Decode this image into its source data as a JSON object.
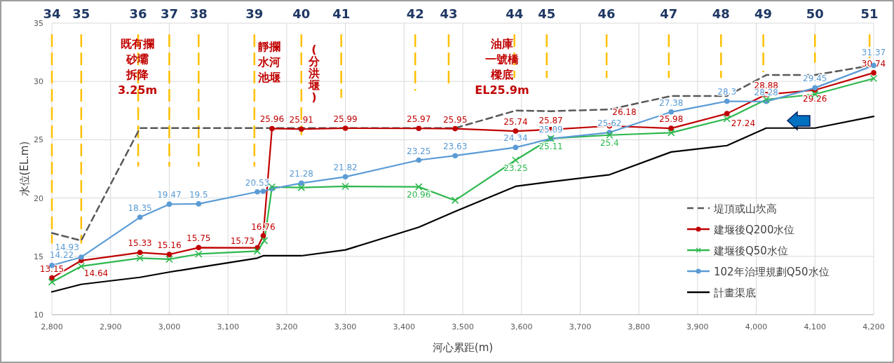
{
  "chart_data": {
    "type": "line",
    "xlabel": "河心累距(m)",
    "ylabel": "水位(EL.m)",
    "xlim": [
      2800,
      4200
    ],
    "ylim": [
      10,
      35
    ],
    "xticks": [
      {
        "value": 2800,
        "label": "2,800"
      },
      {
        "value": 2900,
        "label": "2,900"
      },
      {
        "value": 3000,
        "label": "3,000"
      },
      {
        "value": 3100,
        "label": "3,100"
      },
      {
        "value": 3200,
        "label": "3,200"
      },
      {
        "value": 3300,
        "label": "3,300"
      },
      {
        "value": 3400,
        "label": "3,400"
      },
      {
        "value": 3500,
        "label": "3,500"
      },
      {
        "value": 3600,
        "label": "3,600"
      },
      {
        "value": 3700,
        "label": "3,700"
      },
      {
        "value": 3800,
        "label": "3,800"
      },
      {
        "value": 3900,
        "label": "3,900"
      },
      {
        "value": 4000,
        "label": "4,000"
      },
      {
        "value": 4100,
        "label": "4,100"
      },
      {
        "value": 4200,
        "label": "4,200"
      }
    ],
    "yticks": [
      10,
      15,
      20,
      25,
      30,
      35
    ],
    "grid": true,
    "legend": "bottom right",
    "series": [
      {
        "name": "堤頂或山坎高",
        "color": "#595959",
        "line_style": "dashed",
        "marker": "none",
        "x": [
          2800,
          2850,
          2950,
          3487,
          3590,
          3650,
          3750,
          3855,
          3950,
          4017,
          4100,
          4200
        ],
        "values": [
          17.0,
          16.35,
          26.0,
          26.0,
          27.5,
          27.45,
          27.6,
          28.75,
          28.75,
          30.55,
          30.55,
          31.4
        ]
      },
      {
        "name": "建堰後Q200水位",
        "color": "#c00000",
        "line_style": "solid",
        "marker": "circle",
        "x": [
          2800,
          2850,
          2950,
          3000,
          3050,
          3150,
          3160,
          3175,
          3225,
          3300,
          3425,
          3487,
          3590,
          3650,
          3750,
          3855,
          3950,
          4017,
          4100,
          4200
        ],
        "values": [
          13.15,
          14.64,
          15.33,
          15.16,
          15.75,
          15.73,
          16.76,
          25.96,
          25.91,
          25.99,
          25.97,
          25.95,
          25.74,
          25.87,
          26.18,
          25.98,
          27.24,
          28.88,
          29.26,
          30.74
        ],
        "value_labels": [
          "13.15",
          "14.64",
          "15.33",
          "15.16",
          "15.75",
          "15.73",
          "16.76",
          "25.96",
          "25.91",
          "25.99",
          "25.97",
          "25.95",
          "25.74",
          "25.87",
          "26.18",
          "25.98",
          "27.24",
          "28.88",
          "29.26",
          "30.74"
        ]
      },
      {
        "name": "建堰後Q50水位",
        "color": "#2eb84e",
        "line_style": "solid",
        "marker": "cross",
        "x": [
          2800,
          2850,
          2950,
          3000,
          3050,
          3150,
          3162,
          3175,
          3225,
          3300,
          3425,
          3487,
          3590,
          3650,
          3750,
          3855,
          3950,
          4017,
          4100,
          4200
        ],
        "values": [
          12.8,
          14.15,
          14.85,
          14.75,
          15.2,
          15.45,
          16.35,
          20.95,
          20.9,
          21.0,
          20.96,
          19.8,
          23.25,
          25.11,
          25.4,
          25.6,
          26.8,
          28.45,
          28.9,
          30.25
        ],
        "value_labels": [
          null,
          null,
          null,
          null,
          null,
          null,
          null,
          null,
          null,
          null,
          "20.96",
          null,
          "23.25",
          "25.11",
          "25.4",
          null,
          null,
          null,
          null,
          null
        ]
      },
      {
        "name": "102年治理規劃Q50水位",
        "color": "#5b9bd5",
        "line_style": "solid",
        "marker": "circle",
        "x": [
          2800,
          2850,
          2950,
          3000,
          3050,
          3150,
          3160,
          3175,
          3225,
          3300,
          3425,
          3487,
          3590,
          3650,
          3750,
          3855,
          3950,
          4017,
          4100,
          4200
        ],
        "values": [
          14.22,
          14.93,
          18.35,
          19.47,
          19.5,
          20.53,
          20.58,
          20.8,
          21.28,
          21.82,
          23.25,
          23.63,
          24.34,
          25.09,
          25.62,
          27.38,
          28.3,
          28.28,
          29.45,
          31.37
        ],
        "value_labels": [
          "14.22",
          "14.93",
          "18.35",
          "19.47",
          "19.5",
          "20.53",
          null,
          null,
          "21.28",
          "21.82",
          "23.25",
          "23.63",
          "24.34",
          "25.09",
          "25.62",
          "27.38",
          "28.3",
          "28.28",
          "29.45",
          "31.37"
        ]
      },
      {
        "name": "計畫渠底",
        "color": "#000000",
        "line_style": "solid",
        "marker": "none",
        "x": [
          2800,
          2850,
          2950,
          3000,
          3050,
          3150,
          3160,
          3225,
          3300,
          3425,
          3487,
          3590,
          3650,
          3750,
          3855,
          3950,
          4017,
          4100,
          4200
        ],
        "values": [
          11.95,
          12.6,
          13.2,
          13.65,
          14.05,
          14.85,
          15.05,
          15.05,
          15.55,
          17.5,
          18.85,
          21.0,
          21.4,
          22.0,
          23.95,
          24.5,
          26.0,
          26.0,
          27.0
        ]
      }
    ],
    "ref_lines": [
      {
        "axis": "x",
        "value": 2800,
        "color": "#ffc000",
        "line_style": "dashed"
      },
      {
        "axis": "x",
        "value": 2850,
        "color": "#ffc000",
        "line_style": "dashed"
      },
      {
        "axis": "x",
        "value": 2947,
        "color": "#ffc000",
        "line_style": "dashed"
      },
      {
        "axis": "x",
        "value": 3000,
        "color": "#ffc000",
        "line_style": "dashed"
      },
      {
        "axis": "x",
        "value": 3050,
        "color": "#ffc000",
        "line_style": "dashed"
      },
      {
        "axis": "x",
        "value": 3145,
        "color": "#ffc000",
        "line_style": "dashed"
      },
      {
        "axis": "x",
        "value": 3225,
        "color": "#ffc000",
        "line_style": "dashed"
      },
      {
        "axis": "x",
        "value": 3293,
        "color": "#ffc000",
        "line_style": "dashed"
      },
      {
        "axis": "x",
        "value": 3419,
        "color": "#ffc000",
        "line_style": "dashed"
      },
      {
        "axis": "x",
        "value": 3476,
        "color": "#ffc000",
        "line_style": "dashed"
      },
      {
        "axis": "x",
        "value": 3588,
        "color": "#ffc000",
        "line_style": "dashed"
      },
      {
        "axis": "x",
        "value": 3643,
        "color": "#ffc000",
        "line_style": "dashed"
      },
      {
        "axis": "x",
        "value": 3745,
        "color": "#ffc000",
        "line_style": "dashed"
      },
      {
        "axis": "x",
        "value": 3851,
        "color": "#ffc000",
        "line_style": "dashed"
      },
      {
        "axis": "x",
        "value": 3940,
        "color": "#ffc000",
        "line_style": "dashed"
      },
      {
        "axis": "x",
        "value": 4012,
        "color": "#ffc000",
        "line_style": "dashed"
      },
      {
        "axis": "x",
        "value": 4100,
        "color": "#ffc000",
        "line_style": "dashed"
      },
      {
        "axis": "x",
        "value": 4193,
        "color": "#ffc000",
        "line_style": "dashed"
      }
    ],
    "annotations": [
      "既有攔砂壩拆降3.25m",
      "靜攔水河池堰",
      "(分洪堰)",
      "油庫一號橋樑底EL25.9m",
      "34",
      "35",
      "36",
      "37",
      "38",
      "39",
      "40",
      "41",
      "42",
      "43",
      "44",
      "45",
      "46",
      "47",
      "48",
      "49",
      "50",
      "51"
    ]
  }
}
